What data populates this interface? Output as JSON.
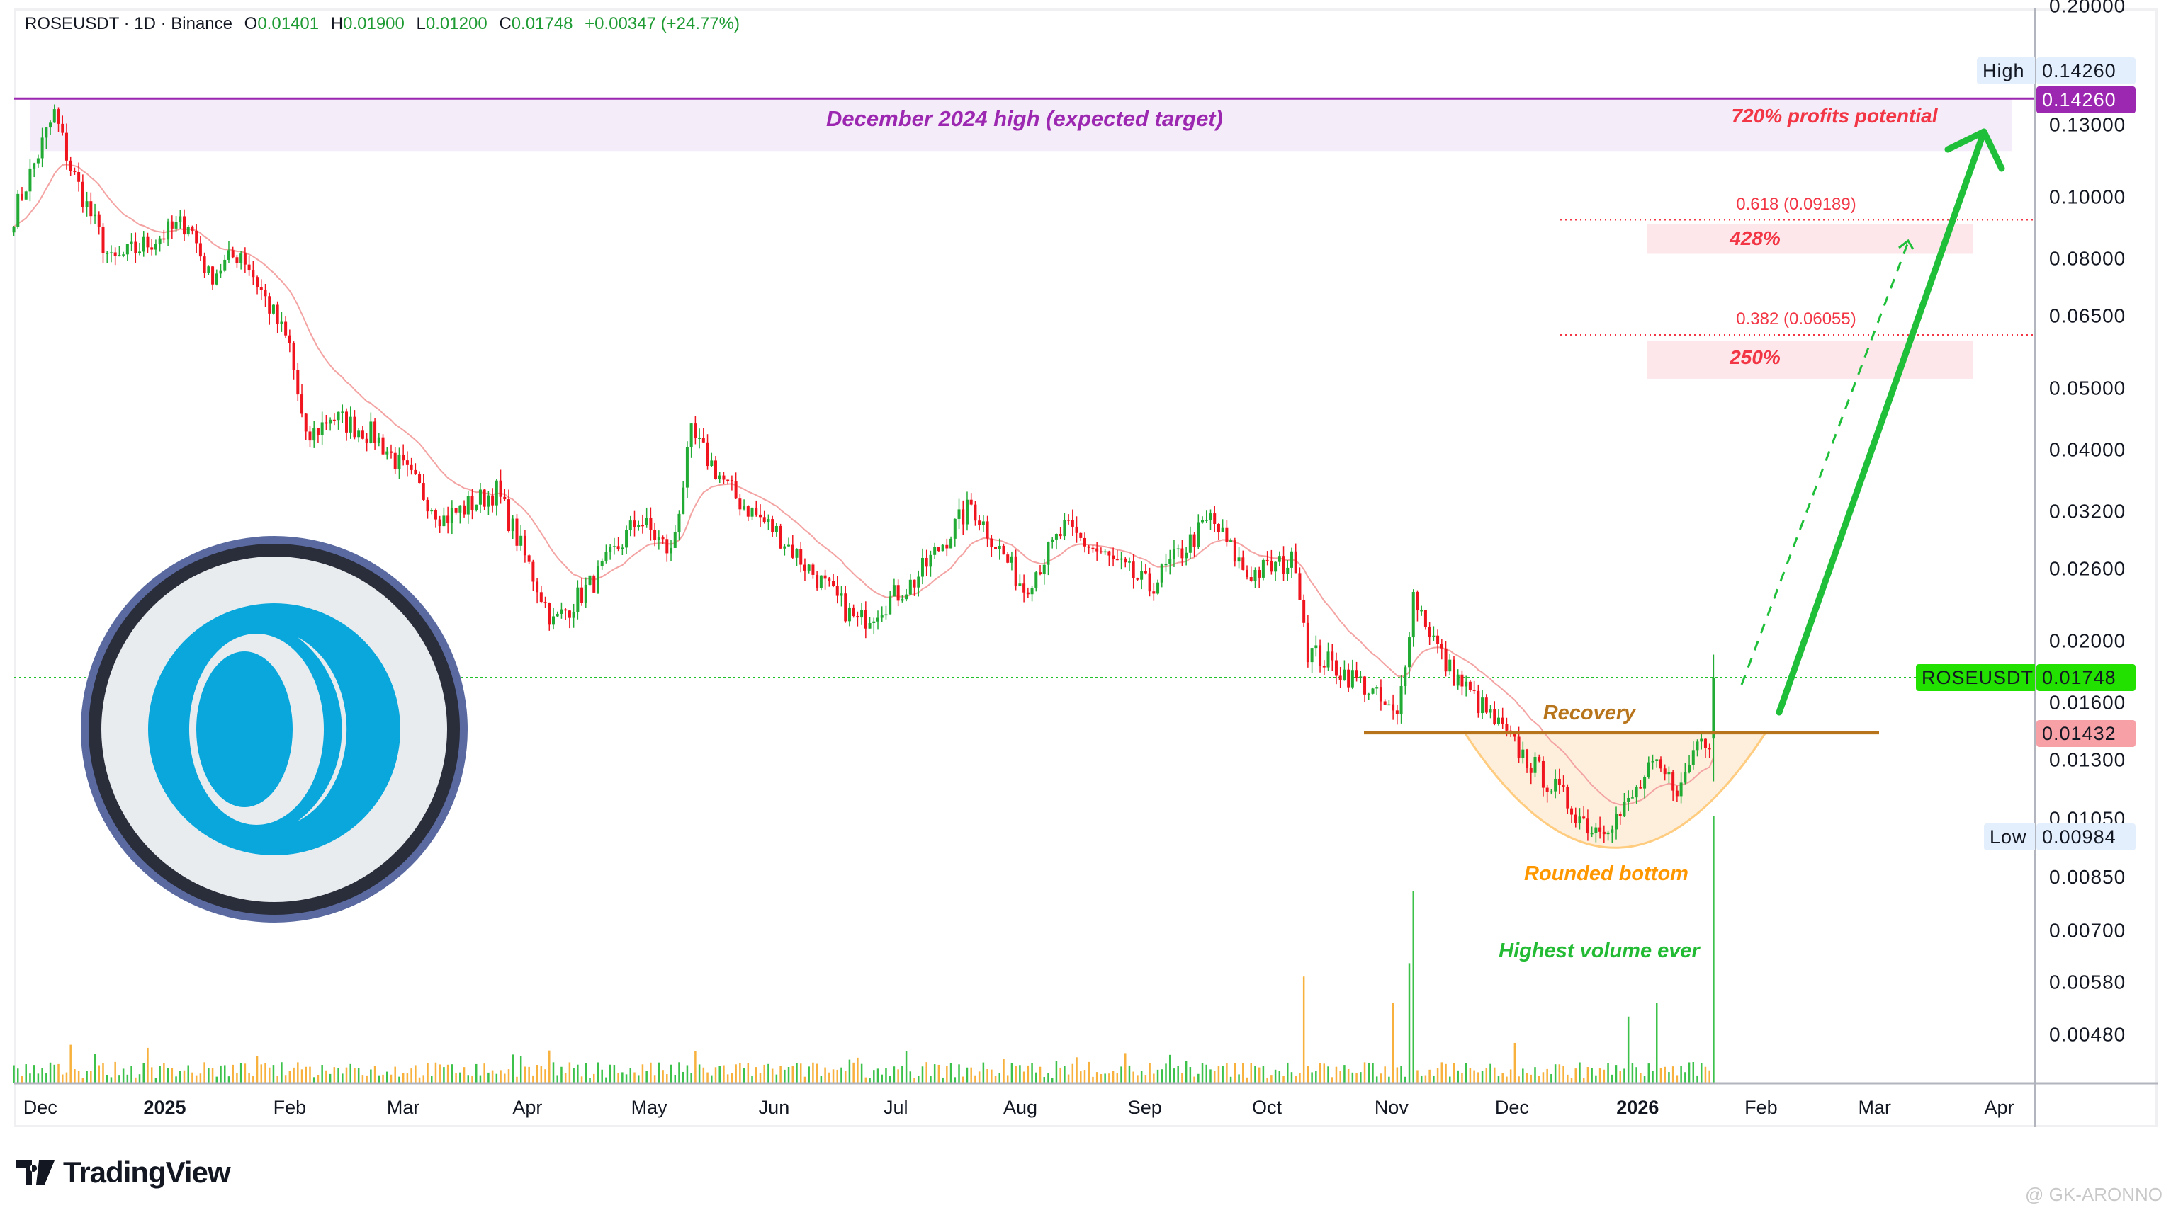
{
  "header": {
    "symbol": "ROSEUSDT · 1D · Binance",
    "open_label": "O",
    "open": "0.01401",
    "high_label": "H",
    "high": "0.01900",
    "low_label": "L",
    "low": "0.01200",
    "close_label": "C",
    "close": "0.01748",
    "change": "+0.00347 (+24.77%)"
  },
  "price_tags": {
    "high_label": "High",
    "high_value": "0.14260",
    "target_value": "0.14260",
    "symbol_label": "ROSEUSDT",
    "last_value": "0.01748",
    "recovery_value": "0.01432",
    "low_label": "Low",
    "low_value": "0.00984"
  },
  "annotations": {
    "target_band": "December 2024 high (expected target)",
    "profits": "720% profits potential",
    "fib618": "0.618 (0.09189)",
    "fib382": "0.382 (0.06055)",
    "pct428": "428%",
    "pct250": "250%",
    "recovery": "Recovery",
    "rounded_bottom": "Rounded bottom",
    "highest_volume": "Highest volume ever"
  },
  "branding": {
    "logo": "TradingView",
    "watermark": "@ GK-ARONNO"
  },
  "colors": {
    "up": "#22ab34",
    "down": "#f0141e",
    "ma": "#f4a3a3",
    "target": "#9c27b0",
    "fib": "#f23645",
    "recovery": "#b8741a",
    "rounded": "#ff9800",
    "arrow": "#1fbf3a",
    "vol_up": "#3cc24a",
    "vol_down": "#f7b13c"
  },
  "chart_data": {
    "type": "candlestick",
    "title": "ROSEUSDT · 1D · Binance",
    "y_scale": "log",
    "ylim": [
      0.0042,
      0.2
    ],
    "y_ticks": [
      "0.20000",
      "0.13000",
      "0.10000",
      "0.08000",
      "0.06500",
      "0.05000",
      "0.04000",
      "0.03200",
      "0.02600",
      "0.02000",
      "0.01600",
      "0.01300",
      "0.01050",
      "0.00850",
      "0.00700",
      "0.00580",
      "0.00480"
    ],
    "x_ticks": [
      {
        "label": "Dec",
        "day": 6.5,
        "bold": false
      },
      {
        "label": "2025",
        "day": 37.2,
        "bold": true
      },
      {
        "label": "Feb",
        "day": 68,
        "bold": false
      },
      {
        "label": "Mar",
        "day": 96,
        "bold": false
      },
      {
        "label": "Apr",
        "day": 126.6,
        "bold": false
      },
      {
        "label": "May",
        "day": 156.6,
        "bold": false
      },
      {
        "label": "Jun",
        "day": 187.4,
        "bold": false
      },
      {
        "label": "Jul",
        "day": 217.4,
        "bold": false
      },
      {
        "label": "Aug",
        "day": 248.1,
        "bold": false
      },
      {
        "label": "Sep",
        "day": 278.8,
        "bold": false
      },
      {
        "label": "Oct",
        "day": 308.9,
        "bold": false
      },
      {
        "label": "Nov",
        "day": 339.6,
        "bold": false
      },
      {
        "label": "Dec",
        "day": 369.3,
        "bold": false
      },
      {
        "label": "2026",
        "day": 400.3,
        "bold": true
      },
      {
        "label": "Feb",
        "day": 430.7,
        "bold": false
      },
      {
        "label": "Mar",
        "day": 458.7,
        "bold": false
      },
      {
        "label": "Apr",
        "day": 489.4,
        "bold": false
      }
    ],
    "close_path": [
      [
        0,
        0.0937
      ],
      [
        10,
        0.135
      ],
      [
        14,
        0.111
      ],
      [
        24,
        0.0786
      ],
      [
        43,
        0.0914
      ],
      [
        48,
        0.0748
      ],
      [
        56,
        0.082
      ],
      [
        68,
        0.058
      ],
      [
        72,
        0.041
      ],
      [
        78,
        0.0452
      ],
      [
        89,
        0.042
      ],
      [
        106,
        0.0311
      ],
      [
        119,
        0.0344
      ],
      [
        133,
        0.0213
      ],
      [
        143,
        0.0248
      ],
      [
        154,
        0.0311
      ],
      [
        162,
        0.0274
      ],
      [
        167,
        0.042
      ],
      [
        178,
        0.0335
      ],
      [
        188,
        0.0296
      ],
      [
        208,
        0.0213
      ],
      [
        222,
        0.0248
      ],
      [
        236,
        0.0327
      ],
      [
        249,
        0.0242
      ],
      [
        259,
        0.03
      ],
      [
        280,
        0.0242
      ],
      [
        295,
        0.0311
      ],
      [
        304,
        0.0254
      ],
      [
        316,
        0.0267
      ],
      [
        319,
        0.0193
      ],
      [
        333,
        0.017
      ],
      [
        341,
        0.015
      ],
      [
        345,
        0.0236
      ],
      [
        353,
        0.0183
      ],
      [
        360,
        0.0162
      ],
      [
        372,
        0.0132
      ],
      [
        389,
        0.0101
      ],
      [
        396,
        0.0106
      ],
      [
        404,
        0.0126
      ],
      [
        411,
        0.0117
      ],
      [
        415,
        0.014
      ],
      [
        418,
        0.01401
      ]
    ],
    "last_candle": {
      "open": 0.01401,
      "high": 0.019,
      "low": 0.012,
      "close": 0.01748
    },
    "volume_spikes": [
      [
        168,
        12
      ],
      [
        318,
        40
      ],
      [
        340,
        30
      ],
      [
        345,
        72
      ],
      [
        344,
        45
      ],
      [
        398,
        25
      ],
      [
        405,
        30
      ],
      [
        419,
        100
      ]
    ],
    "levels": {
      "december_2024_high": 0.1426,
      "fib_0_618": 0.09189,
      "fib_0_382": 0.06055,
      "recovery": 0.01432,
      "low": 0.00984,
      "last": 0.01748
    }
  }
}
